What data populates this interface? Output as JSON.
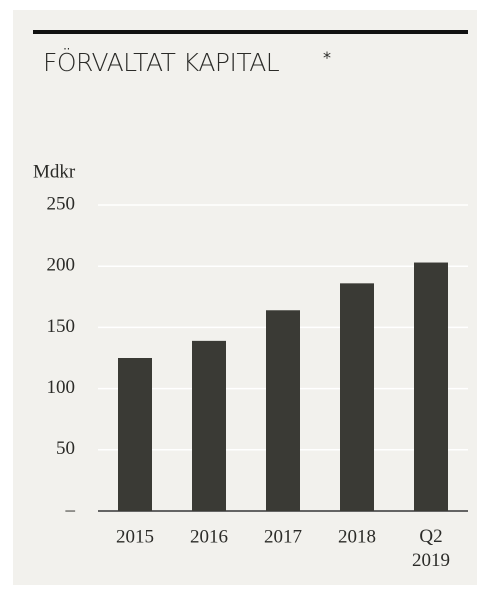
{
  "chart_data": {
    "type": "bar",
    "title": "FÖRVALTAT KAPITAL",
    "title_note": "*",
    "ylabel": "Mdkr",
    "categories": [
      "2015",
      "2016",
      "2017",
      "2018",
      "Q2 2019"
    ],
    "values": [
      125,
      139,
      164,
      186,
      203
    ],
    "color": "#3a3a35",
    "ylim": [
      0,
      250
    ],
    "yticks": [
      {
        "value": 0,
        "label": "–"
      },
      50,
      100,
      150,
      200,
      250
    ],
    "grid": true
  }
}
